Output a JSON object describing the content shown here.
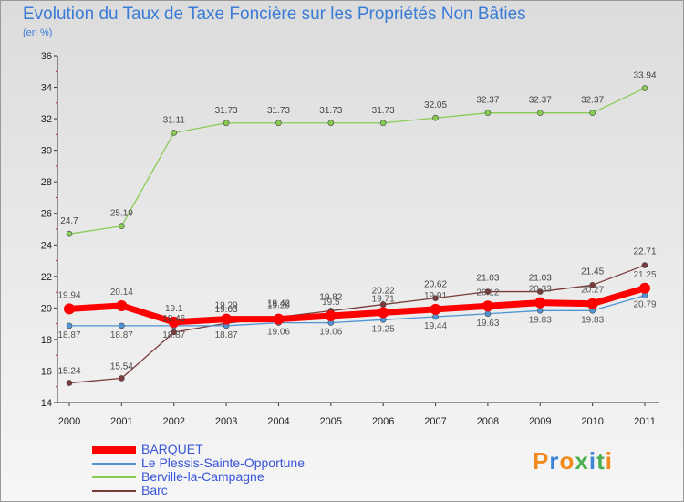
{
  "chart_data": {
    "type": "line",
    "title": "Evolution du Taux de Taxe Foncière sur les Propriétés Non Bâties",
    "ylabel": "(en %)",
    "xlabel": "",
    "ylim": [
      14,
      36
    ],
    "yticks": [
      14,
      16,
      18,
      20,
      22,
      24,
      26,
      28,
      30,
      32,
      34,
      36
    ],
    "categories": [
      "2000",
      "2001",
      "2002",
      "2003",
      "2004",
      "2005",
      "2006",
      "2007",
      "2008",
      "2009",
      "2010",
      "2011"
    ],
    "series": [
      {
        "name": "BARQUET",
        "color": "#ff0000",
        "values": [
          19.94,
          20.14,
          19.1,
          19.29,
          19.29,
          19.5,
          19.71,
          19.91,
          20.12,
          20.33,
          20.27,
          21.25
        ],
        "labels": [
          "19.94",
          "20.14",
          "19.1",
          "19.29",
          "19.29",
          "19.5",
          "19.71",
          "19.91",
          "20.12",
          "20.33",
          "20.27",
          "21.25"
        ]
      },
      {
        "name": "Le Plessis-Sainte-Opportune",
        "color": "#4f94d4",
        "values": [
          18.87,
          18.87,
          18.87,
          18.87,
          19.06,
          19.06,
          19.25,
          19.44,
          19.63,
          19.83,
          19.83,
          20.79
        ],
        "labels": [
          "18.87",
          "18.87",
          "18.87",
          "18.87",
          "19.06",
          "19.06",
          "19.25",
          "19.44",
          "19.63",
          "19.83",
          "19.83",
          "20.79"
        ]
      },
      {
        "name": "Berville-la-Campagne",
        "color": "#88cc55",
        "values": [
          24.7,
          25.19,
          31.11,
          31.73,
          31.73,
          31.73,
          31.73,
          32.05,
          32.37,
          32.37,
          32.37,
          33.94
        ],
        "labels": [
          "24.7",
          "25.19",
          "31.11",
          "31.73",
          "31.73",
          "31.73",
          "31.73",
          "32.05",
          "32.37",
          "32.37",
          "32.37",
          "33.94"
        ]
      },
      {
        "name": "Barc",
        "color": "#7a3b3b",
        "values": [
          15.24,
          15.54,
          18.46,
          19.03,
          19.42,
          19.82,
          20.22,
          20.62,
          21.03,
          21.03,
          21.45,
          22.71
        ],
        "labels": [
          "15.24",
          "15.54",
          "18.46",
          "19.03",
          "19.42",
          "19.82",
          "20.22",
          "20.62",
          "21.03",
          "21.03",
          "21.45",
          "22.71"
        ]
      }
    ],
    "legend": "bottom-left"
  },
  "brand": {
    "letters": [
      "P",
      "r",
      "o",
      "x",
      "i",
      "t",
      "i"
    ],
    "colors": [
      "#f08a1c",
      "#3f86d4",
      "#f08a1c",
      "#4caf50",
      "#3f86d4",
      "#4caf50",
      "#f08a1c"
    ]
  }
}
